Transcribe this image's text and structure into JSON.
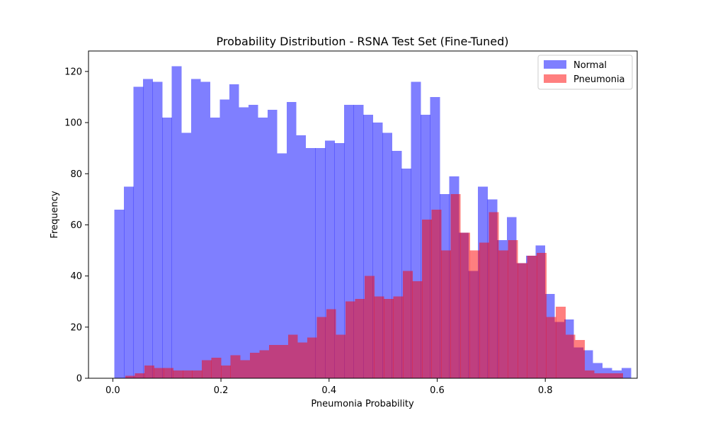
{
  "chart_data": {
    "type": "histogram",
    "title": "Probability Distribution - RSNA Test Set (Fine-Tuned)",
    "xlabel": "Pneumonia Probability",
    "ylabel": "Frequency",
    "xlim": [
      -0.045,
      0.97
    ],
    "ylim": [
      0,
      128
    ],
    "xticks": [
      0.0,
      0.2,
      0.4,
      0.6,
      0.8
    ],
    "xtick_labels": [
      "0.0",
      "0.2",
      "0.4",
      "0.6",
      "0.8"
    ],
    "yticks": [
      0,
      20,
      40,
      60,
      80,
      100,
      120
    ],
    "ytick_labels": [
      "0",
      "20",
      "40",
      "60",
      "80",
      "100",
      "120"
    ],
    "grid": false,
    "legend_position": "top-right",
    "series": [
      {
        "name": "Normal",
        "color": "#0000ff",
        "alpha": 0.5,
        "bin_start": 0.003,
        "bin_width": 0.0177,
        "values": [
          66,
          75,
          114,
          117,
          116,
          102,
          122,
          96,
          117,
          116,
          102,
          109,
          115,
          106,
          107,
          102,
          105,
          88,
          108,
          95,
          90,
          90,
          93,
          92,
          107,
          107,
          103,
          100,
          96,
          89,
          82,
          116,
          103,
          110,
          72,
          79,
          57,
          42,
          75,
          70,
          54,
          63,
          45,
          48,
          52,
          33,
          22,
          23,
          12,
          11,
          6,
          4,
          3,
          4
        ]
      },
      {
        "name": "Pneumonia",
        "color": "#ff0000",
        "alpha": 0.5,
        "bin_start": 0.0232,
        "bin_width": 0.0177,
        "values": [
          1,
          2,
          5,
          4,
          4,
          3,
          3,
          3,
          7,
          8,
          5,
          9,
          7,
          10,
          11,
          13,
          13,
          17,
          14,
          16,
          24,
          27,
          17,
          30,
          31,
          40,
          32,
          31,
          32,
          42,
          38,
          62,
          66,
          50,
          72,
          57,
          50,
          53,
          65,
          50,
          54,
          45,
          48,
          49,
          24,
          28,
          17,
          15,
          3,
          2,
          2,
          2
        ]
      }
    ]
  }
}
